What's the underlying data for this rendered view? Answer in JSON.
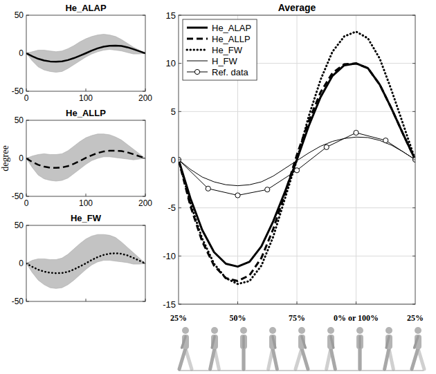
{
  "chart_data": [
    {
      "type": "line",
      "title": "He_ALAP",
      "x": [
        0,
        10,
        20,
        30,
        40,
        50,
        60,
        70,
        80,
        90,
        100,
        110,
        120,
        130,
        140,
        150,
        160,
        170,
        180,
        190,
        200
      ],
      "xlim": [
        0,
        200
      ],
      "xticks": [
        0,
        100,
        200
      ],
      "ylim": [
        -50,
        50
      ],
      "yticks": [
        -50,
        0,
        50
      ],
      "grid": false,
      "series": [
        {
          "color": "#000000",
          "line_style": "solid",
          "values": [
            0,
            -4,
            -7.3,
            -9.6,
            -10.8,
            -11.1,
            -10.6,
            -9,
            -6.4,
            -3.3,
            0,
            3.5,
            6.5,
            8.7,
            9.8,
            10,
            9.5,
            7.8,
            5.3,
            2.6,
            0
          ],
          "lower": [
            0,
            -10,
            -18,
            -22,
            -24,
            -25,
            -24,
            -20,
            -15,
            -10,
            -5,
            -1,
            2,
            4,
            5,
            4,
            3,
            1,
            -1,
            -1,
            0
          ],
          "upper": [
            0,
            2,
            4,
            4,
            3,
            2,
            3,
            6,
            10,
            15,
            19,
            22,
            24,
            25,
            24,
            22,
            18,
            13,
            8,
            4,
            0
          ]
        }
      ]
    },
    {
      "type": "line",
      "title": "He_ALLP",
      "ylabel": "degree",
      "x": [
        0,
        10,
        20,
        30,
        40,
        50,
        60,
        70,
        80,
        90,
        100,
        110,
        120,
        130,
        140,
        150,
        160,
        170,
        180,
        190,
        200
      ],
      "xlim": [
        0,
        200
      ],
      "xticks": [
        0,
        100,
        200
      ],
      "ylim": [
        -50,
        50
      ],
      "yticks": [
        -50,
        0,
        50
      ],
      "grid": false,
      "series": [
        {
          "color": "#000000",
          "line_style": "dashed",
          "values": [
            0,
            -4.8,
            -8.5,
            -11,
            -12.3,
            -12.6,
            -12,
            -10.2,
            -7.2,
            -3.5,
            0.5,
            4,
            7,
            9,
            9.9,
            10,
            9.5,
            7.8,
            5.3,
            2.6,
            0
          ],
          "lower": [
            0,
            -12,
            -22,
            -27,
            -29,
            -30,
            -29,
            -26,
            -20,
            -14,
            -8,
            -3,
            0,
            2,
            2,
            1,
            0,
            -1,
            -2,
            -1,
            0
          ],
          "upper": [
            0,
            3,
            5,
            6,
            5,
            5,
            6,
            10,
            16,
            22,
            27,
            30,
            32,
            32,
            31,
            28,
            24,
            18,
            12,
            6,
            0
          ]
        }
      ]
    },
    {
      "type": "line",
      "title": "He_FW",
      "x": [
        0,
        10,
        20,
        30,
        40,
        50,
        60,
        70,
        80,
        90,
        100,
        110,
        120,
        130,
        140,
        150,
        160,
        170,
        180,
        190,
        200
      ],
      "xlim": [
        0,
        200
      ],
      "xticks": [
        0,
        100,
        200
      ],
      "ylim": [
        -50,
        50
      ],
      "yticks": [
        -50,
        0,
        50
      ],
      "grid": false,
      "tick_labels": "y",
      "series": [
        {
          "color": "#000000",
          "line_style": "dotted",
          "values": [
            0,
            -4.5,
            -8.2,
            -10.8,
            -12.3,
            -12.9,
            -12.6,
            -11,
            -8,
            -4,
            0,
            4.5,
            8.3,
            11.2,
            12.8,
            13.3,
            12.6,
            10.5,
            7.2,
            3.6,
            0
          ],
          "lower": [
            0,
            -12,
            -22,
            -28,
            -32,
            -33,
            -32,
            -28,
            -22,
            -15,
            -8,
            -2,
            2,
            4,
            4,
            3,
            2,
            1,
            -1,
            -1,
            0
          ],
          "upper": [
            0,
            4,
            6,
            6,
            5,
            5,
            7,
            12,
            19,
            26,
            32,
            36,
            38,
            38,
            37,
            34,
            28,
            21,
            14,
            7,
            0
          ]
        }
      ]
    },
    {
      "type": "line",
      "title": "Average",
      "x": [
        0,
        10,
        20,
        30,
        40,
        50,
        60,
        70,
        80,
        90,
        100,
        110,
        120,
        130,
        140,
        150,
        160,
        170,
        180,
        190,
        200
      ],
      "xlim": [
        0,
        200
      ],
      "xticks": [
        50,
        100,
        150
      ],
      "ylim": [
        -15,
        15
      ],
      "yticks": [
        -15,
        -10,
        -5,
        0,
        5,
        10,
        15
      ],
      "grid": true,
      "tick_labels": "y",
      "legend": "upper left",
      "annotations": [
        {
          "text": "25%",
          "x": 0
        },
        {
          "text": "50%",
          "x": 50
        },
        {
          "text": "75%",
          "x": 100
        },
        {
          "text": "0% or 100%",
          "x": 150
        },
        {
          "text": "25%",
          "x": 200
        }
      ],
      "series": [
        {
          "name": "He_ALAP",
          "color": "#000000",
          "line_style": "solid",
          "values": [
            0,
            -4,
            -7.3,
            -9.6,
            -10.8,
            -11.1,
            -10.6,
            -9,
            -6.4,
            -3.3,
            0,
            3.5,
            6.5,
            8.7,
            9.8,
            10,
            9.5,
            7.8,
            5.3,
            2.6,
            0
          ]
        },
        {
          "name": "He_ALLP",
          "color": "#000000",
          "line_style": "dashed",
          "values": [
            0,
            -4.8,
            -8.5,
            -11,
            -12.3,
            -12.6,
            -12,
            -10.2,
            -7.2,
            -3.5,
            0.5,
            4,
            7,
            9,
            9.9,
            10,
            9.5,
            7.8,
            5.3,
            2.6,
            0
          ]
        },
        {
          "name": "He_FW",
          "color": "#000000",
          "line_style": "dotted",
          "values": [
            0,
            -4.5,
            -8.2,
            -10.8,
            -12.3,
            -12.9,
            -12.6,
            -11,
            -8,
            -4,
            0,
            4.5,
            8.3,
            11.2,
            12.8,
            13.3,
            12.6,
            10.5,
            7.2,
            3.6,
            0
          ]
        },
        {
          "name": "H_FW",
          "color": "#000000",
          "line_style": "thin",
          "values": [
            0,
            -1,
            -1.8,
            -2.3,
            -2.6,
            -2.7,
            -2.6,
            -2.3,
            -1.7,
            -0.9,
            -0.1,
            0.7,
            1.4,
            1.9,
            2.2,
            2.35,
            2.3,
            2,
            1.5,
            0.8,
            0
          ]
        },
        {
          "name": "Ref. data",
          "color": "#000000",
          "line_style": "thin",
          "marker": "circle",
          "x": [
            0,
            25,
            50,
            75,
            100,
            125,
            150,
            175,
            200
          ],
          "values": [
            0,
            -3,
            -3.7,
            -3.1,
            -1.1,
            1.3,
            2.8,
            2,
            0
          ]
        }
      ]
    }
  ]
}
